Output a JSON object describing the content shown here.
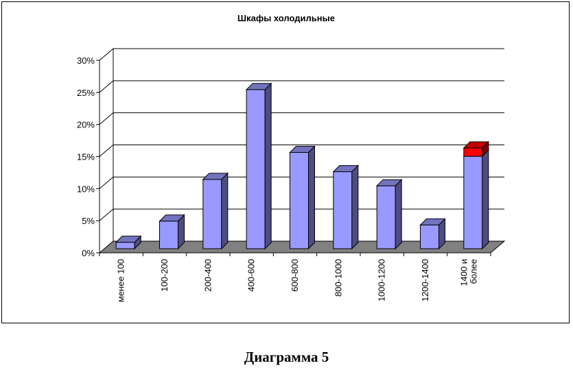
{
  "caption": "Диаграмма 5",
  "chart_data": {
    "type": "bar",
    "title": "Шкафы холодильные",
    "categories": [
      "менее 100",
      "100-200",
      "200-400",
      "400-600",
      "600-800",
      "800-1000",
      "1000-1200",
      "1200-1400",
      "1400 и более"
    ],
    "category_lines": [
      [
        "менее 100"
      ],
      [
        "100-200"
      ],
      [
        "200-400"
      ],
      [
        "400-600"
      ],
      [
        "600-800"
      ],
      [
        "800-1000"
      ],
      [
        "1000-1200"
      ],
      [
        "1200-1400"
      ],
      [
        "1400 и",
        "более"
      ]
    ],
    "series": [
      {
        "values": [
          1.0,
          4.3,
          10.8,
          24.8,
          15.0,
          12.0,
          9.8,
          3.7,
          14.4
        ],
        "color": "#9999ff"
      },
      {
        "values": [
          0,
          0,
          0,
          0,
          0,
          0,
          0,
          0,
          1.3
        ],
        "color": "#ff0000"
      }
    ],
    "stacked": true,
    "yticks": [
      "0%",
      "5%",
      "10%",
      "15%",
      "20%",
      "25%",
      "30%"
    ],
    "ylim": [
      0,
      30
    ],
    "grid": true,
    "legend": false,
    "view": "3d",
    "xlabel": "",
    "ylabel": ""
  }
}
